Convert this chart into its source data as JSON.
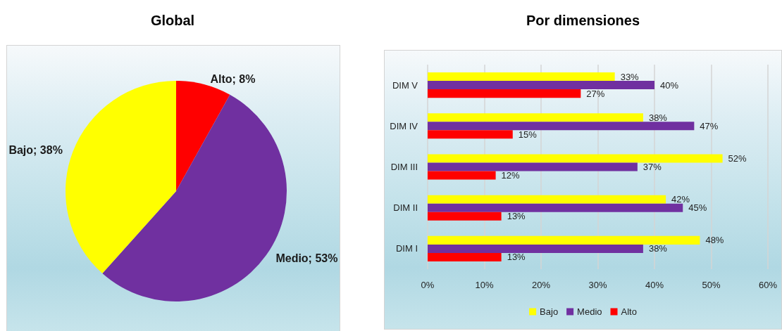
{
  "chart_data": [
    {
      "type": "pie",
      "title": "Global",
      "categories": [
        "Alto",
        "Medio",
        "Bajo"
      ],
      "values": [
        8,
        53,
        38
      ],
      "colors": [
        "#ff0000",
        "#7030a0",
        "#ffff00"
      ],
      "value_labels": [
        "8%",
        "53%",
        "38%"
      ]
    },
    {
      "type": "bar",
      "title": "Por dimensiones",
      "orientation": "horizontal",
      "categories": [
        "DIM V",
        "DIM IV",
        "DIM III",
        "DIM II",
        "DIM I"
      ],
      "series": [
        {
          "name": "Bajo",
          "color": "#ffff00",
          "values": [
            33,
            38,
            52,
            42,
            48
          ],
          "value_labels": [
            "33%",
            "38%",
            "52%",
            "42%",
            "48%"
          ]
        },
        {
          "name": "Medio",
          "color": "#7030a0",
          "values": [
            40,
            47,
            37,
            45,
            38
          ],
          "value_labels": [
            "40%",
            "47%",
            "37%",
            "45%",
            "38%"
          ]
        },
        {
          "name": "Alto",
          "color": "#ff0000",
          "values": [
            27,
            15,
            12,
            13,
            13
          ],
          "value_labels": [
            "27%",
            "15%",
            "12%",
            "13%",
            "13%"
          ]
        }
      ],
      "xlim": [
        0,
        60
      ],
      "xticks": [
        {
          "value": 0,
          "label": "0%"
        },
        {
          "value": 10,
          "label": "10%"
        },
        {
          "value": 20,
          "label": "20%"
        },
        {
          "value": 30,
          "label": "30%"
        },
        {
          "value": 40,
          "label": "40%"
        },
        {
          "value": 50,
          "label": "50%"
        },
        {
          "value": 60,
          "label": "60%"
        }
      ],
      "grid": "x",
      "legend": "bottom"
    }
  ]
}
